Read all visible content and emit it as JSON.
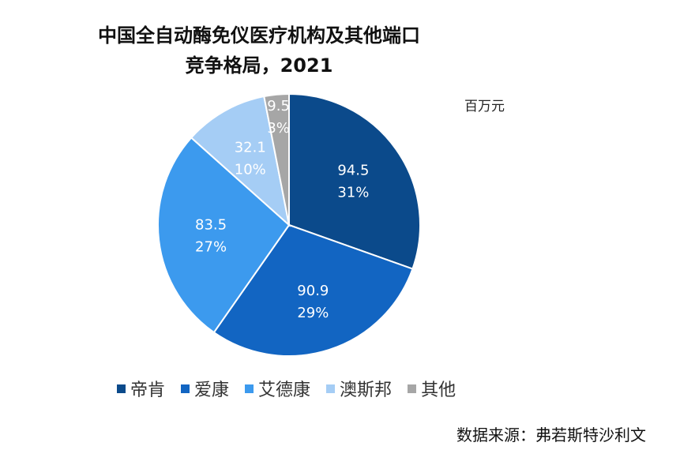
{
  "title_line1": "中国全自动酶免仪医疗机构及其他端口",
  "title_line2": "竞争格局，2021",
  "unit": "百万元",
  "source": "数据来源：弗若斯特沙利文",
  "chart_data": {
    "type": "pie",
    "title": "中国全自动酶免仪医疗机构及其他端口竞争格局，2021",
    "unit": "百万元",
    "legend_position": "bottom",
    "start_angle": "12 o'clock, clockwise",
    "slices": [
      {
        "name": "帝肯",
        "value": 94.5,
        "value_label": "94.5",
        "percent_label": "31%",
        "color": "#0B4A8B"
      },
      {
        "name": "爱康",
        "value": 90.9,
        "value_label": "90.9",
        "percent_label": "29%",
        "color": "#1265C2"
      },
      {
        "name": "艾德康",
        "value": 83.5,
        "value_label": "83.5",
        "percent_label": "27%",
        "color": "#3C9AEE"
      },
      {
        "name": "澳斯邦",
        "value": 32.1,
        "value_label": "32.1",
        "percent_label": "10%",
        "color": "#A5CDF5"
      },
      {
        "name": "其他",
        "value": 9.5,
        "value_label": "9.5",
        "percent_label": "3%",
        "color": "#A6A6A6"
      }
    ]
  }
}
